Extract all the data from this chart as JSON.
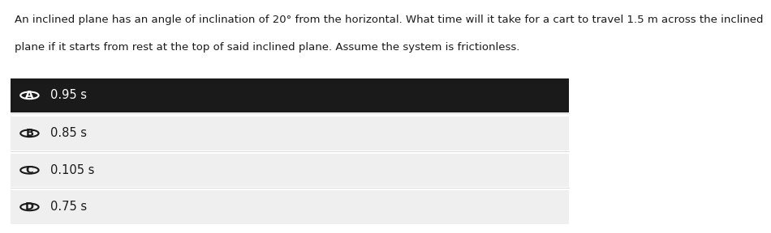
{
  "question_line1": "An inclined plane has an angle of inclination of 20° from the horizontal. What time will it take for a cart to travel 1.5 m across the inclined",
  "question_line2": "plane if it starts from rest at the top of said inclined plane. Assume the system is frictionless.",
  "options": [
    {
      "label": "A",
      "text": "0.95 s",
      "selected": true
    },
    {
      "label": "B",
      "text": "0.85 s",
      "selected": false
    },
    {
      "label": "C",
      "text": "0.105 s",
      "selected": false
    },
    {
      "label": "D",
      "text": "0.75 s",
      "selected": false
    }
  ],
  "selected_bg": "#1a1a1a",
  "selected_text_color": "#ffffff",
  "unselected_bg": "#efefef",
  "unselected_text_color": "#1a1a1a",
  "circle_bg_selected": "#1a1a1a",
  "circle_border_selected": "#ffffff",
  "circle_bg_unselected": "#efefef",
  "circle_border_unselected": "#1a1a1a",
  "question_text_color": "#1a1a1a",
  "fig_bg": "#ffffff",
  "question_fontsize": 9.5,
  "option_fontsize": 10.5,
  "label_fontsize": 9.5
}
